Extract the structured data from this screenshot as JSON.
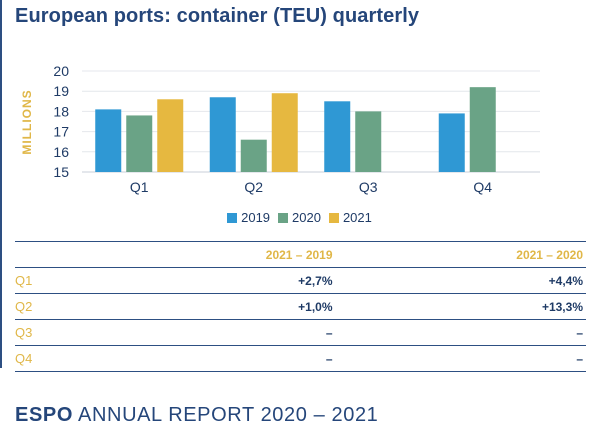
{
  "title": "European ports: container (TEU) quarterly",
  "chart_data": {
    "type": "bar",
    "categories": [
      "Q1",
      "Q2",
      "Q3",
      "Q4"
    ],
    "series": [
      {
        "name": "2019",
        "color": "#2f98d4",
        "values": [
          18.1,
          18.7,
          18.5,
          17.9
        ]
      },
      {
        "name": "2020",
        "color": "#6aa386",
        "values": [
          17.8,
          16.6,
          18.0,
          19.2
        ]
      },
      {
        "name": "2021",
        "color": "#e6b840",
        "values": [
          18.6,
          18.9,
          null,
          null
        ]
      }
    ],
    "ylabel": "MILLIONS",
    "ylim": [
      15,
      20
    ],
    "yticks": [
      "15",
      "16",
      "17",
      "18",
      "19",
      "20"
    ],
    "grid": true,
    "legend": "bottom"
  },
  "table": {
    "headers": [
      "",
      "2021 – 2019",
      "2021 – 2020"
    ],
    "rows": [
      {
        "label": "Q1",
        "v1": "+2,7%",
        "v2": "+4,4%"
      },
      {
        "label": "Q2",
        "v1": "+1,0%",
        "v2": "+13,3%"
      },
      {
        "label": "Q3",
        "v1": "–",
        "v2": "–"
      },
      {
        "label": "Q4",
        "v1": "–",
        "v2": "–"
      }
    ]
  },
  "footer": {
    "brand": "ESPO",
    "text": "ANNUAL REPORT 2020 – 2021"
  }
}
